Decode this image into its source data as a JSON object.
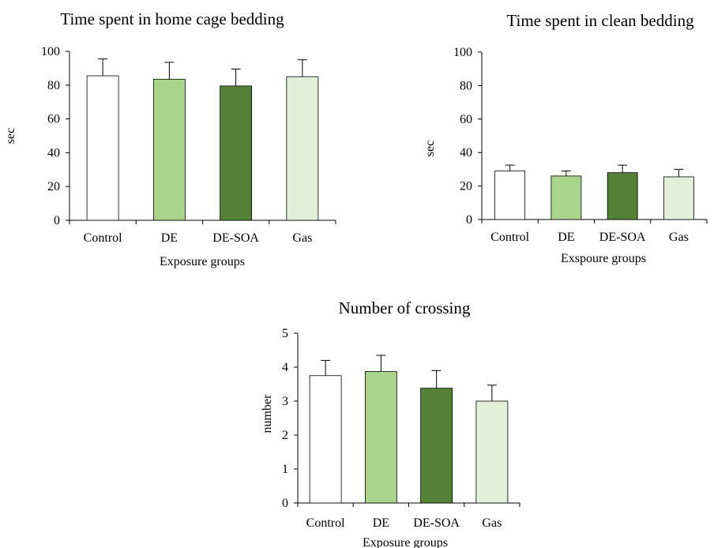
{
  "colors": {
    "control": "#ffffff",
    "de": "#a8d48c",
    "de_soa": "#538135",
    "gas": "#e2efd9",
    "axis": "#000000",
    "error_bar": "#000000"
  },
  "chart_data": [
    {
      "type": "bar",
      "title": "Time spent in home cage bedding",
      "xlabel": "Exposure groups",
      "ylabel": "sec",
      "categories": [
        "Control",
        "DE",
        "DE-SOA",
        "Gas"
      ],
      "values": [
        85.5,
        83.5,
        79.5,
        85
      ],
      "errors": [
        10,
        10,
        10,
        10
      ],
      "ylim": [
        0,
        100
      ],
      "yticks": [
        "0",
        "20",
        "40",
        "60",
        "80",
        "100"
      ],
      "grid": false,
      "legend": "none"
    },
    {
      "type": "bar",
      "title": "Time spent in clean bedding",
      "xlabel": "Exspoure groups",
      "ylabel": "sec",
      "categories": [
        "Control",
        "DE",
        "DE-SOA",
        "Gas"
      ],
      "values": [
        29,
        26,
        28,
        25.5
      ],
      "errors": [
        3.5,
        3,
        4.5,
        4.5
      ],
      "ylim": [
        0,
        100
      ],
      "yticks": [
        "0",
        "20",
        "40",
        "60",
        "80",
        "100"
      ],
      "grid": false,
      "legend": "none"
    },
    {
      "type": "bar",
      "title": "Number of crossing",
      "xlabel": "Exposure groups",
      "ylabel": "number",
      "categories": [
        "Control",
        "DE",
        "DE-SOA",
        "Gas"
      ],
      "values": [
        3.75,
        3.87,
        3.38,
        3.0
      ],
      "errors": [
        0.45,
        0.48,
        0.52,
        0.47
      ],
      "ylim": [
        0,
        5
      ],
      "yticks": [
        "0",
        "1",
        "2",
        "3",
        "4",
        "5"
      ],
      "grid": false,
      "legend": "none"
    }
  ]
}
